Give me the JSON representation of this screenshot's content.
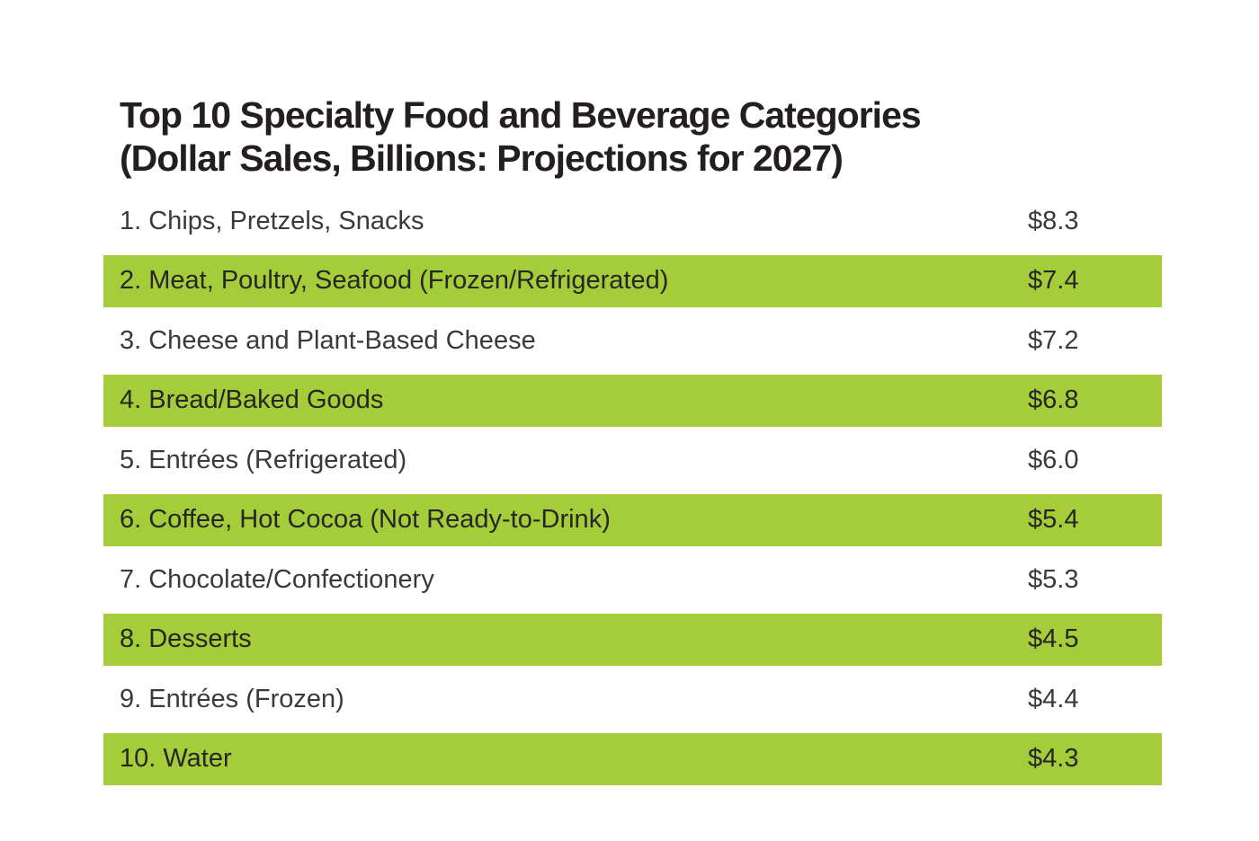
{
  "title": {
    "line1": "Top 10 Specialty Food and Beverage Categories",
    "line2": "(Dollar Sales, Billions: Projections for 2027)"
  },
  "colors": {
    "background": "#ffffff",
    "highlight_green": "#a4cd39",
    "title_text": "#231f20",
    "row_text": "#3a3a3a",
    "row_text_highlight": "#262626"
  },
  "chart_data": {
    "type": "table",
    "title": "Top 10 Specialty Food and Beverage Categories (Dollar Sales, Billions: Projections for 2027)",
    "unit": "USD billions (projected dollar sales, 2027)",
    "legend_position": "none",
    "grid": false,
    "categories": [
      "Chips, Pretzels, Snacks",
      "Meat, Poultry, Seafood (Frozen/Refrigerated)",
      "Cheese and Plant-Based Cheese",
      "Bread/Baked Goods",
      "Entrées (Refrigerated)",
      "Coffee, Hot Cocoa (Not Ready-to-Drink)",
      "Chocolate/Confectionery",
      "Desserts",
      "Entrées (Frozen)",
      "Water"
    ],
    "values": [
      8.3,
      7.4,
      7.2,
      6.8,
      6.0,
      5.4,
      5.3,
      4.5,
      4.4,
      4.3
    ],
    "rows": [
      {
        "rank": 1,
        "label": "1. Chips, Pretzels, Snacks",
        "value": "$8.3",
        "highlighted": false
      },
      {
        "rank": 2,
        "label": "2. Meat, Poultry, Seafood (Frozen/Refrigerated)",
        "value": "$7.4",
        "highlighted": true
      },
      {
        "rank": 3,
        "label": "3. Cheese and Plant-Based Cheese",
        "value": "$7.2",
        "highlighted": false
      },
      {
        "rank": 4,
        "label": "4. Bread/Baked Goods",
        "value": "$6.8",
        "highlighted": true
      },
      {
        "rank": 5,
        "label": "5. Entrées (Refrigerated)",
        "value": "$6.0",
        "highlighted": false
      },
      {
        "rank": 6,
        "label": "6. Coffee, Hot Cocoa (Not Ready-to-Drink)",
        "value": "$5.4",
        "highlighted": true
      },
      {
        "rank": 7,
        "label": "7. Chocolate/Confectionery",
        "value": "$5.3",
        "highlighted": false
      },
      {
        "rank": 8,
        "label": "8. Desserts",
        "value": "$4.5",
        "highlighted": true
      },
      {
        "rank": 9,
        "label": "9. Entrées (Frozen)",
        "value": "$4.4",
        "highlighted": false
      },
      {
        "rank": 10,
        "label": "10. Water",
        "value": "$4.3",
        "highlighted": true
      }
    ]
  }
}
